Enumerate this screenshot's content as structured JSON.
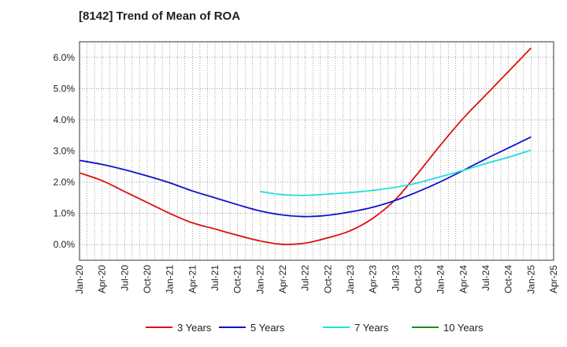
{
  "chart_data": {
    "type": "line",
    "title": "[8142]  Trend of Mean of ROA",
    "xlabel": "",
    "ylabel": "",
    "y_unit": "%",
    "ylim": [
      -0.5,
      6.5
    ],
    "y_ticks": [
      "0.0%",
      "1.0%",
      "2.0%",
      "3.0%",
      "4.0%",
      "5.0%",
      "6.0%"
    ],
    "x_tick_labels": [
      "Jan-20",
      "Apr-20",
      "Jul-20",
      "Oct-20",
      "Jan-21",
      "Apr-21",
      "Jul-21",
      "Oct-21",
      "Jan-22",
      "Apr-22",
      "Jul-22",
      "Oct-22",
      "Jan-23",
      "Apr-23",
      "Jul-23",
      "Oct-23",
      "Jan-24",
      "Apr-24",
      "Jul-24",
      "Oct-24",
      "Jan-25",
      "Apr-25"
    ],
    "grid": true,
    "legend_position": "bottom",
    "series": [
      {
        "name": "3 Years",
        "color": "#dd1111",
        "x": [
          "Jan-20",
          "Apr-20",
          "Jul-20",
          "Oct-20",
          "Jan-21",
          "Apr-21",
          "Jul-21",
          "Oct-21",
          "Jan-22",
          "Apr-22",
          "Jul-22",
          "Oct-22",
          "Jan-23",
          "Apr-23",
          "Jul-23",
          "Oct-23",
          "Jan-24",
          "Apr-24",
          "Jul-24",
          "Oct-24",
          "Jan-25"
        ],
        "values": [
          2.3,
          2.05,
          1.7,
          1.35,
          1.0,
          0.7,
          0.5,
          0.3,
          0.12,
          0.01,
          0.05,
          0.22,
          0.45,
          0.85,
          1.45,
          2.3,
          3.2,
          4.05,
          4.8,
          5.55,
          6.3
        ]
      },
      {
        "name": "5 Years",
        "color": "#1111cc",
        "x": [
          "Jan-20",
          "Apr-20",
          "Jul-20",
          "Oct-20",
          "Jan-21",
          "Apr-21",
          "Jul-21",
          "Oct-21",
          "Jan-22",
          "Apr-22",
          "Jul-22",
          "Oct-22",
          "Jan-23",
          "Apr-23",
          "Jul-23",
          "Oct-23",
          "Jan-24",
          "Apr-24",
          "Jul-24",
          "Oct-24",
          "Jan-25"
        ],
        "values": [
          2.7,
          2.57,
          2.4,
          2.2,
          1.98,
          1.72,
          1.5,
          1.28,
          1.08,
          0.95,
          0.9,
          0.94,
          1.05,
          1.2,
          1.42,
          1.7,
          2.02,
          2.38,
          2.75,
          3.1,
          3.45
        ]
      },
      {
        "name": "7 Years",
        "color": "#22dddd",
        "x": [
          "Jan-22",
          "Apr-22",
          "Jul-22",
          "Oct-22",
          "Jan-23",
          "Apr-23",
          "Jul-23",
          "Oct-23",
          "Jan-24",
          "Apr-24",
          "Jul-24",
          "Oct-24",
          "Jan-25"
        ],
        "values": [
          1.7,
          1.6,
          1.58,
          1.62,
          1.67,
          1.74,
          1.84,
          1.98,
          2.18,
          2.38,
          2.6,
          2.8,
          3.03
        ]
      },
      {
        "name": "10 Years",
        "color": "#228822",
        "x": [],
        "values": []
      }
    ]
  }
}
